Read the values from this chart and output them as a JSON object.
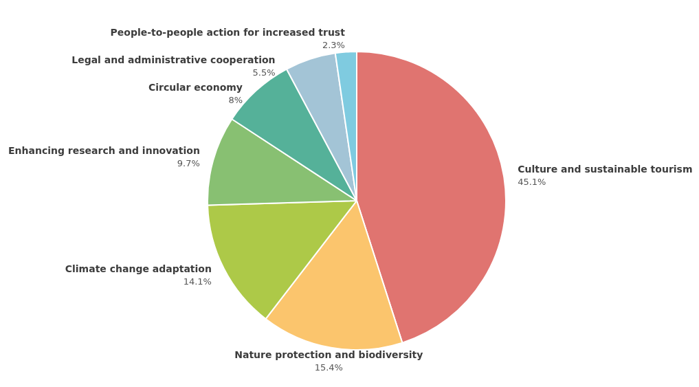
{
  "chart_data": {
    "type": "pie",
    "categories": [
      "Culture and sustainable tourism",
      "Nature protection and biodiversity",
      "Climate change adaptation",
      "Enhancing research and innovation",
      "Circular economy",
      "Legal and administrative cooperation",
      "People-to-people action for increased trust"
    ],
    "values": [
      45.1,
      15.4,
      14.1,
      9.7,
      8,
      5.5,
      2.3
    ],
    "value_labels": [
      "45.1%",
      "15.4%",
      "14.1%",
      "9.7%",
      "8%",
      "5.5%",
      "2.3%"
    ],
    "colors": [
      "#e07470",
      "#fbc56d",
      "#adc948",
      "#88c072",
      "#55b199",
      "#a3c4d6",
      "#7fcbe0"
    ],
    "legend": false
  }
}
